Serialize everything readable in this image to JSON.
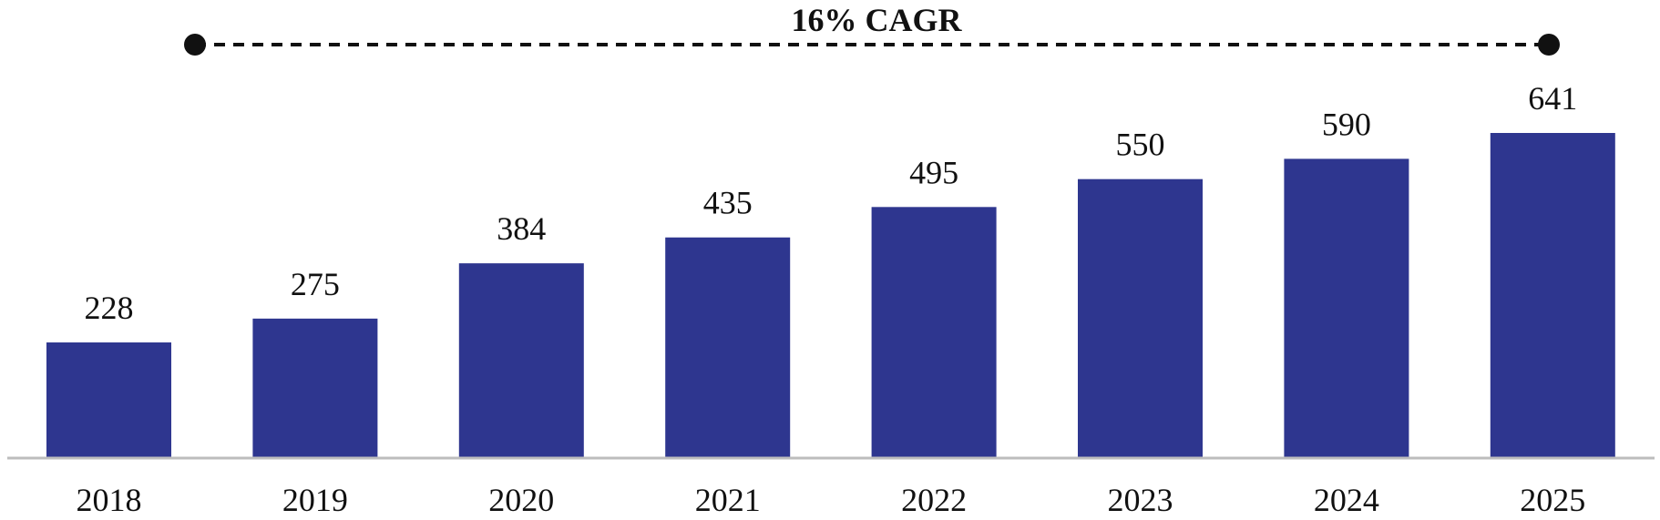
{
  "chart_data": {
    "type": "bar",
    "categories": [
      "2018",
      "2019",
      "2020",
      "2021",
      "2022",
      "2023",
      "2024",
      "2025"
    ],
    "values": [
      228,
      275,
      384,
      435,
      495,
      550,
      590,
      641
    ],
    "title": "",
    "xlabel": "",
    "ylabel": "",
    "ylim": [
      0,
      641
    ],
    "grid": false,
    "bar_color": "#2e368f",
    "axis_color": "#bdbdbd",
    "annotation": {
      "text": "16% CAGR",
      "from": "2018",
      "to": "2025",
      "style": "dashed-line-with-dots"
    }
  }
}
